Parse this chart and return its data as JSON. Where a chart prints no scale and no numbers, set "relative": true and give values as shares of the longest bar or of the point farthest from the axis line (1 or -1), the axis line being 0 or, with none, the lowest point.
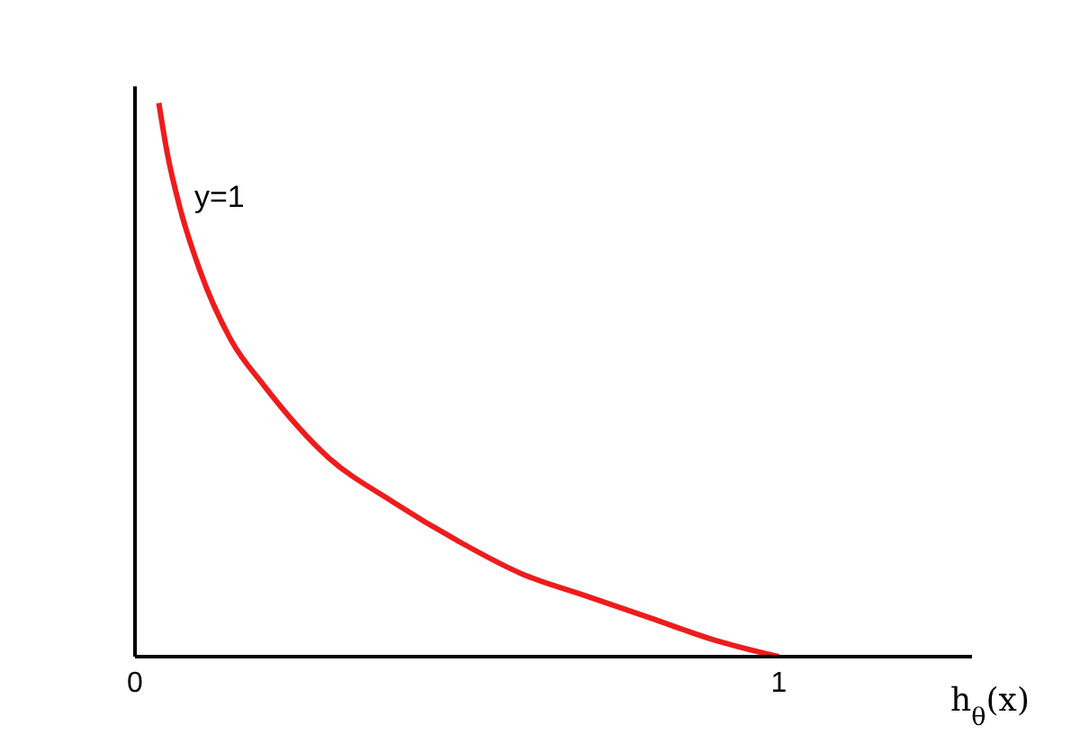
{
  "chart_data": {
    "type": "line",
    "relative": true,
    "xlabel": "h$_{θ}$(x)",
    "x": [
      0.037,
      0.05,
      0.07,
      0.1,
      0.15,
      0.2,
      0.3,
      0.4,
      0.5,
      0.6,
      0.7,
      0.8,
      0.9,
      1.0
    ],
    "series": [
      {
        "color": "#ee1c1c",
        "values": [
          1.0,
          0.91,
          0.81,
          0.7,
          0.57,
          0.49,
          0.36,
          0.28,
          0.21,
          0.15,
          0.11,
          0.07,
          0.03,
          0
        ]
      }
    ],
    "xlim": [
      0,
      1.3
    ],
    "xticks": [
      0,
      1
    ],
    "annotations": [
      "y=1"
    ],
    "marker": "none"
  }
}
